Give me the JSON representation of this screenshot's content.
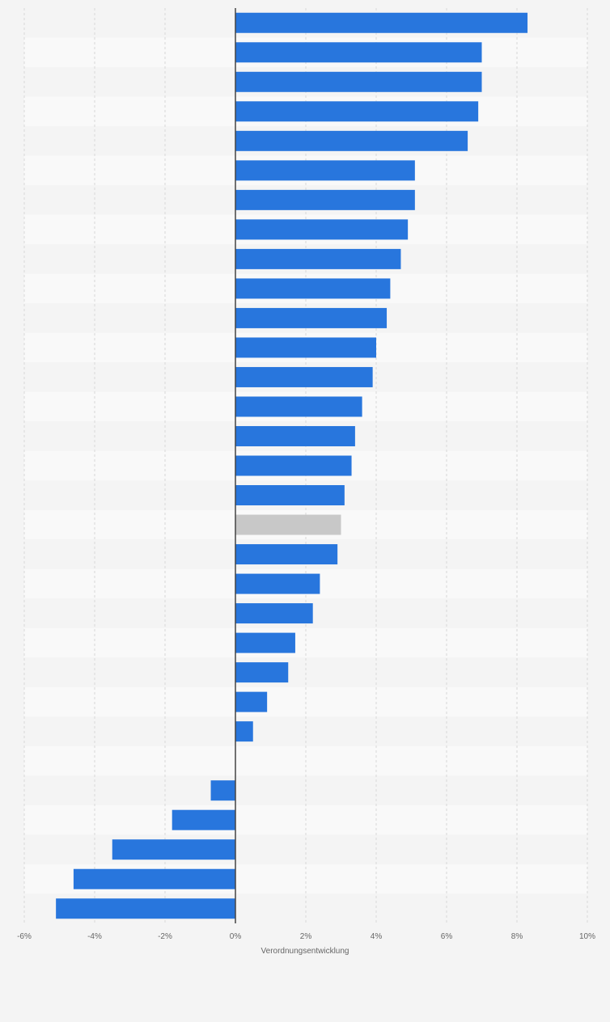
{
  "chart_data": {
    "type": "bar",
    "orientation": "horizontal",
    "xlabel": "Verordnungsentwicklung",
    "ylabel": "",
    "title": "",
    "xlim": [
      -6,
      10
    ],
    "xticks": [
      -6,
      -4,
      -2,
      0,
      2,
      4,
      6,
      8,
      10
    ],
    "xtick_labels": [
      "-6%",
      "-4%",
      "-2%",
      "0%",
      "2%",
      "4%",
      "6%",
      "8%",
      "10%"
    ],
    "grid": true,
    "legend": "none",
    "values": [
      8.3,
      7.0,
      7.0,
      6.9,
      6.6,
      5.1,
      5.1,
      4.9,
      4.7,
      4.4,
      4.3,
      4.0,
      3.9,
      3.6,
      3.4,
      3.3,
      3.1,
      3.0,
      2.9,
      2.4,
      2.2,
      1.7,
      1.5,
      0.9,
      0.5,
      0.0,
      -0.7,
      -1.8,
      -3.5,
      -4.6,
      -5.1
    ],
    "highlighted_index": 17,
    "colors": {
      "bar": "#2876dd",
      "highlight": "#c8c8c8",
      "stripe_dark": "#f4f4f4",
      "stripe_light": "#f9f9f9",
      "grid": "#d8d8d8",
      "axis": "#444444",
      "tick_text": "#666666",
      "background": "#f4f4f4"
    }
  }
}
